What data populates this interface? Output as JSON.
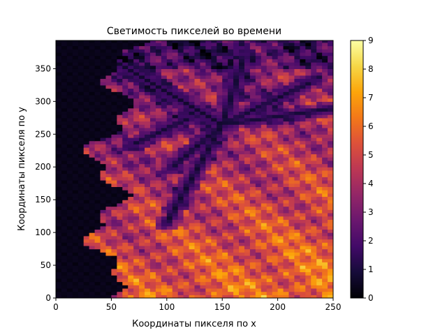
{
  "chart_data": {
    "type": "heatmap",
    "title": "Светимость пикселей во времени",
    "xlabel": "Координаты пикселя по x",
    "ylabel": "Координаты пикселя по y",
    "xlim": [
      0,
      250
    ],
    "ylim": [
      0,
      393
    ],
    "x_ticks": [
      0,
      50,
      100,
      150,
      200,
      250
    ],
    "y_ticks": [
      0,
      50,
      100,
      150,
      200,
      250,
      300,
      350
    ],
    "colormap": "inferno",
    "colorbar": {
      "min": 0,
      "max": 9,
      "ticks": [
        0,
        1,
        2,
        3,
        4,
        5,
        6,
        7,
        8,
        9
      ]
    },
    "grid": false
  }
}
